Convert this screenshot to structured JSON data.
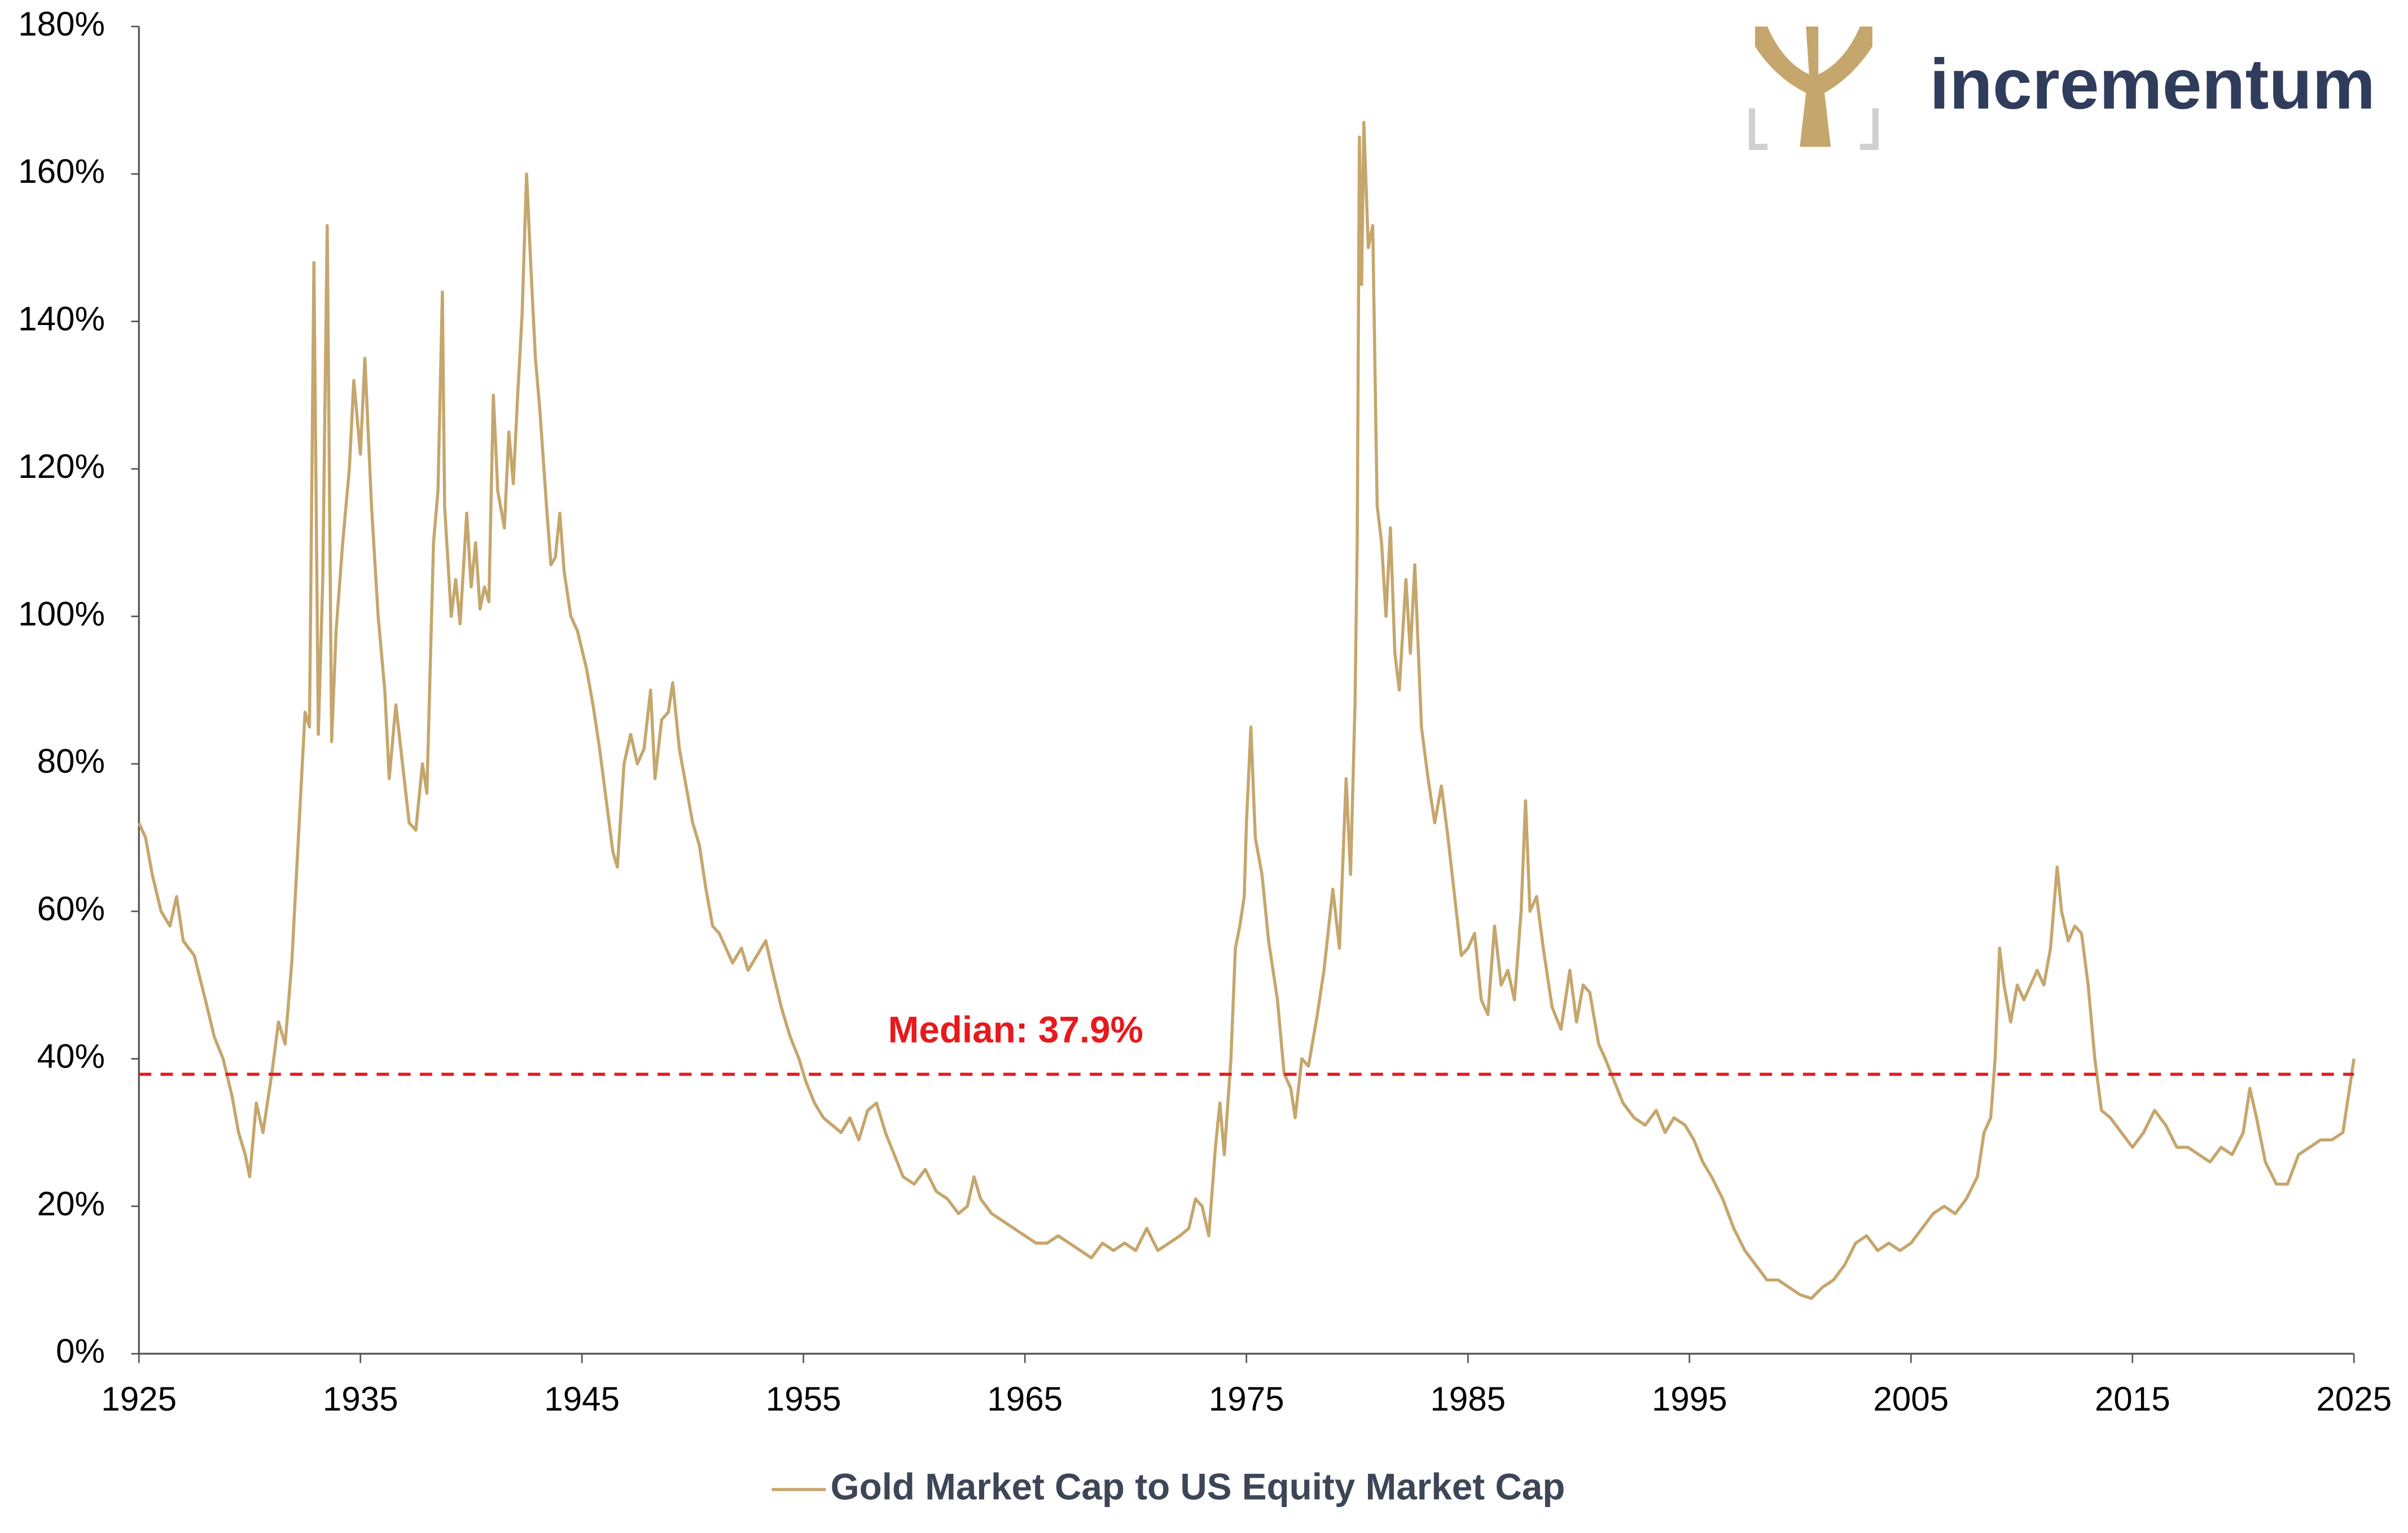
{
  "chart_data": {
    "type": "line",
    "logo": "incrementum",
    "x": [
      1925.0,
      1925.3,
      1925.6,
      1926.0,
      1926.4,
      1926.7,
      1927.0,
      1927.5,
      1928.0,
      1928.4,
      1928.8,
      1929.2,
      1929.5,
      1929.8,
      1930.0,
      1930.3,
      1930.6,
      1931.0,
      1931.3,
      1931.6,
      1931.9,
      1932.2,
      1932.5,
      1932.7,
      1932.9,
      1933.1,
      1933.3,
      1933.5,
      1933.7,
      1933.9,
      1934.2,
      1934.5,
      1934.7,
      1935.0,
      1935.2,
      1935.5,
      1935.8,
      1936.1,
      1936.3,
      1936.6,
      1936.9,
      1937.2,
      1937.5,
      1937.8,
      1938.0,
      1938.3,
      1938.5,
      1938.7,
      1938.8,
      1939.1,
      1939.3,
      1939.5,
      1939.8,
      1940.0,
      1940.2,
      1940.4,
      1940.6,
      1940.8,
      1941.0,
      1941.2,
      1941.5,
      1941.7,
      1941.9,
      1942.1,
      1942.3,
      1942.5,
      1942.7,
      1942.9,
      1943.1,
      1943.4,
      1943.6,
      1943.8,
      1944.0,
      1944.2,
      1944.5,
      1944.8,
      1945.2,
      1945.5,
      1945.8,
      1946.1,
      1946.4,
      1946.6,
      1946.9,
      1947.2,
      1947.5,
      1947.8,
      1948.1,
      1948.3,
      1948.6,
      1948.9,
      1949.1,
      1949.4,
      1949.7,
      1950.0,
      1950.3,
      1950.6,
      1950.9,
      1951.2,
      1951.5,
      1951.8,
      1952.2,
      1952.5,
      1952.9,
      1953.3,
      1953.6,
      1954.0,
      1954.4,
      1954.8,
      1955.1,
      1955.5,
      1955.9,
      1956.3,
      1956.7,
      1957.1,
      1957.5,
      1957.9,
      1958.3,
      1958.7,
      1959.1,
      1959.5,
      1960.0,
      1960.5,
      1961.0,
      1961.5,
      1962.0,
      1962.4,
      1962.7,
      1963.0,
      1963.5,
      1964.0,
      1964.5,
      1965.0,
      1965.5,
      1966.0,
      1966.5,
      1967.0,
      1967.5,
      1968.0,
      1968.5,
      1969.0,
      1969.5,
      1970.0,
      1970.5,
      1971.0,
      1971.5,
      1972.0,
      1972.4,
      1972.7,
      1973.0,
      1973.3,
      1973.6,
      1973.8,
      1974.0,
      1974.3,
      1974.5,
      1974.7,
      1974.9,
      1975.0,
      1975.2,
      1975.4,
      1975.7,
      1976.0,
      1976.4,
      1976.7,
      1977.0,
      1977.2,
      1977.5,
      1977.8,
      1978.2,
      1978.5,
      1978.9,
      1979.2,
      1979.5,
      1979.7,
      1979.9,
      1980.0,
      1980.1,
      1980.2,
      1980.3,
      1980.5,
      1980.7,
      1980.9,
      1981.1,
      1981.3,
      1981.5,
      1981.7,
      1981.9,
      1982.2,
      1982.4,
      1982.6,
      1982.9,
      1983.2,
      1983.5,
      1983.8,
      1984.1,
      1984.4,
      1984.7,
      1985.0,
      1985.3,
      1985.6,
      1985.9,
      1986.2,
      1986.5,
      1986.8,
      1987.1,
      1987.4,
      1987.6,
      1987.8,
      1988.1,
      1988.4,
      1988.8,
      1989.2,
      1989.6,
      1989.9,
      1990.2,
      1990.5,
      1990.9,
      1991.2,
      1991.6,
      1992.0,
      1992.5,
      1993.0,
      1993.5,
      1993.9,
      1994.3,
      1994.8,
      1995.2,
      1995.6,
      1996.0,
      1996.5,
      1997.0,
      1997.5,
      1998.0,
      1998.5,
      1999.0,
      1999.5,
      2000.0,
      2000.5,
      2001.0,
      2001.5,
      2002.0,
      2002.5,
      2003.0,
      2003.5,
      2004.0,
      2004.5,
      2005.0,
      2005.5,
      2006.0,
      2006.5,
      2007.0,
      2007.5,
      2008.0,
      2008.3,
      2008.6,
      2008.8,
      2009.0,
      2009.2,
      2009.5,
      2009.8,
      2010.1,
      2010.4,
      2010.7,
      2011.0,
      2011.3,
      2011.6,
      2011.8,
      2012.1,
      2012.4,
      2012.7,
      2013.0,
      2013.3,
      2013.6,
      2014.0,
      2014.5,
      2015.0,
      2015.5,
      2016.0,
      2016.5,
      2017.0,
      2017.5,
      2018.0,
      2018.5,
      2019.0,
      2019.5,
      2020.0,
      2020.3,
      2020.6,
      2021.0,
      2021.5,
      2022.0,
      2022.5,
      2023.0,
      2023.5,
      2024.0,
      2024.5,
      2025.0
    ],
    "series": [
      {
        "name": "Gold Market Cap to US Equity Market Cap",
        "color": "#c5a66c",
        "values": [
          72,
          70,
          65,
          60,
          58,
          62,
          56,
          54,
          48,
          43,
          40,
          35,
          30,
          27,
          24,
          34,
          30,
          38,
          45,
          42,
          53,
          70,
          87,
          85,
          148,
          84,
          105,
          153,
          83,
          98,
          110,
          120,
          132,
          122,
          135,
          115,
          100,
          90,
          78,
          88,
          80,
          72,
          71,
          80,
          76,
          110,
          117,
          144,
          115,
          100,
          105,
          99,
          114,
          104,
          110,
          101,
          104,
          102,
          130,
          117,
          112,
          125,
          118,
          130,
          141,
          160,
          147,
          135,
          128,
          115,
          107,
          108,
          114,
          106,
          100,
          98,
          93,
          88,
          82,
          75,
          68,
          66,
          80,
          84,
          80,
          82,
          90,
          78,
          86,
          87,
          91,
          82,
          77,
          72,
          69,
          63,
          58,
          57,
          55,
          53,
          55,
          52,
          54,
          56,
          52,
          47,
          43,
          40,
          37,
          34,
          32,
          31,
          30,
          32,
          29,
          33,
          34,
          30,
          27,
          24,
          23,
          25,
          22,
          21,
          19,
          20,
          24,
          21,
          19,
          18,
          17,
          16,
          15,
          15,
          16,
          15,
          14,
          13,
          15,
          14,
          15,
          14,
          17,
          14,
          15,
          16,
          17,
          21,
          20,
          16,
          28,
          34,
          27,
          40,
          55,
          58,
          62,
          72,
          85,
          70,
          65,
          56,
          48,
          38,
          36,
          32,
          40,
          39,
          46,
          52,
          63,
          55,
          78,
          65,
          88,
          110,
          165,
          145,
          167,
          150,
          153,
          115,
          110,
          100,
          112,
          95,
          90,
          105,
          95,
          107,
          85,
          78,
          72,
          77,
          70,
          62,
          54,
          55,
          57,
          48,
          46,
          58,
          50,
          52,
          48,
          60,
          75,
          60,
          62,
          55,
          47,
          44,
          52,
          45,
          50,
          49,
          42,
          40,
          37,
          34,
          32,
          31,
          33,
          30,
          32,
          31,
          29,
          26,
          24,
          21,
          17,
          14,
          12,
          10,
          10,
          9,
          8,
          7.5,
          9,
          10,
          12,
          15,
          16,
          14,
          15,
          14,
          15,
          17,
          19,
          20,
          19,
          21,
          24,
          30,
          32,
          40,
          55,
          50,
          45,
          50,
          48,
          50,
          52,
          50,
          55,
          66,
          60,
          56,
          58,
          57,
          50,
          40,
          33,
          32,
          30,
          28,
          30,
          33,
          31,
          28,
          28,
          27,
          26,
          28,
          27,
          30,
          36,
          32,
          26,
          23,
          23,
          27,
          28,
          29,
          29,
          30,
          40
        ]
      }
    ],
    "median": {
      "value": 37.9,
      "label": "Median: 37.9%",
      "color": "#e8191c"
    },
    "xlim": [
      1925,
      2025
    ],
    "xticks": [
      1925,
      1935,
      1945,
      1955,
      1965,
      1975,
      1985,
      1995,
      2005,
      2015,
      2025
    ],
    "ylim": [
      0,
      180
    ],
    "yticks": [
      {
        "value": 0,
        "label": "0%"
      },
      {
        "value": 20,
        "label": "20%"
      },
      {
        "value": 40,
        "label": "40%"
      },
      {
        "value": 60,
        "label": "60%"
      },
      {
        "value": 80,
        "label": "80%"
      },
      {
        "value": 100,
        "label": "100%"
      },
      {
        "value": 120,
        "label": "120%"
      },
      {
        "value": 140,
        "label": "140%"
      },
      {
        "value": 160,
        "label": "160%"
      },
      {
        "value": 180,
        "label": "180%"
      }
    ],
    "grid": false,
    "legend": "bottom"
  }
}
